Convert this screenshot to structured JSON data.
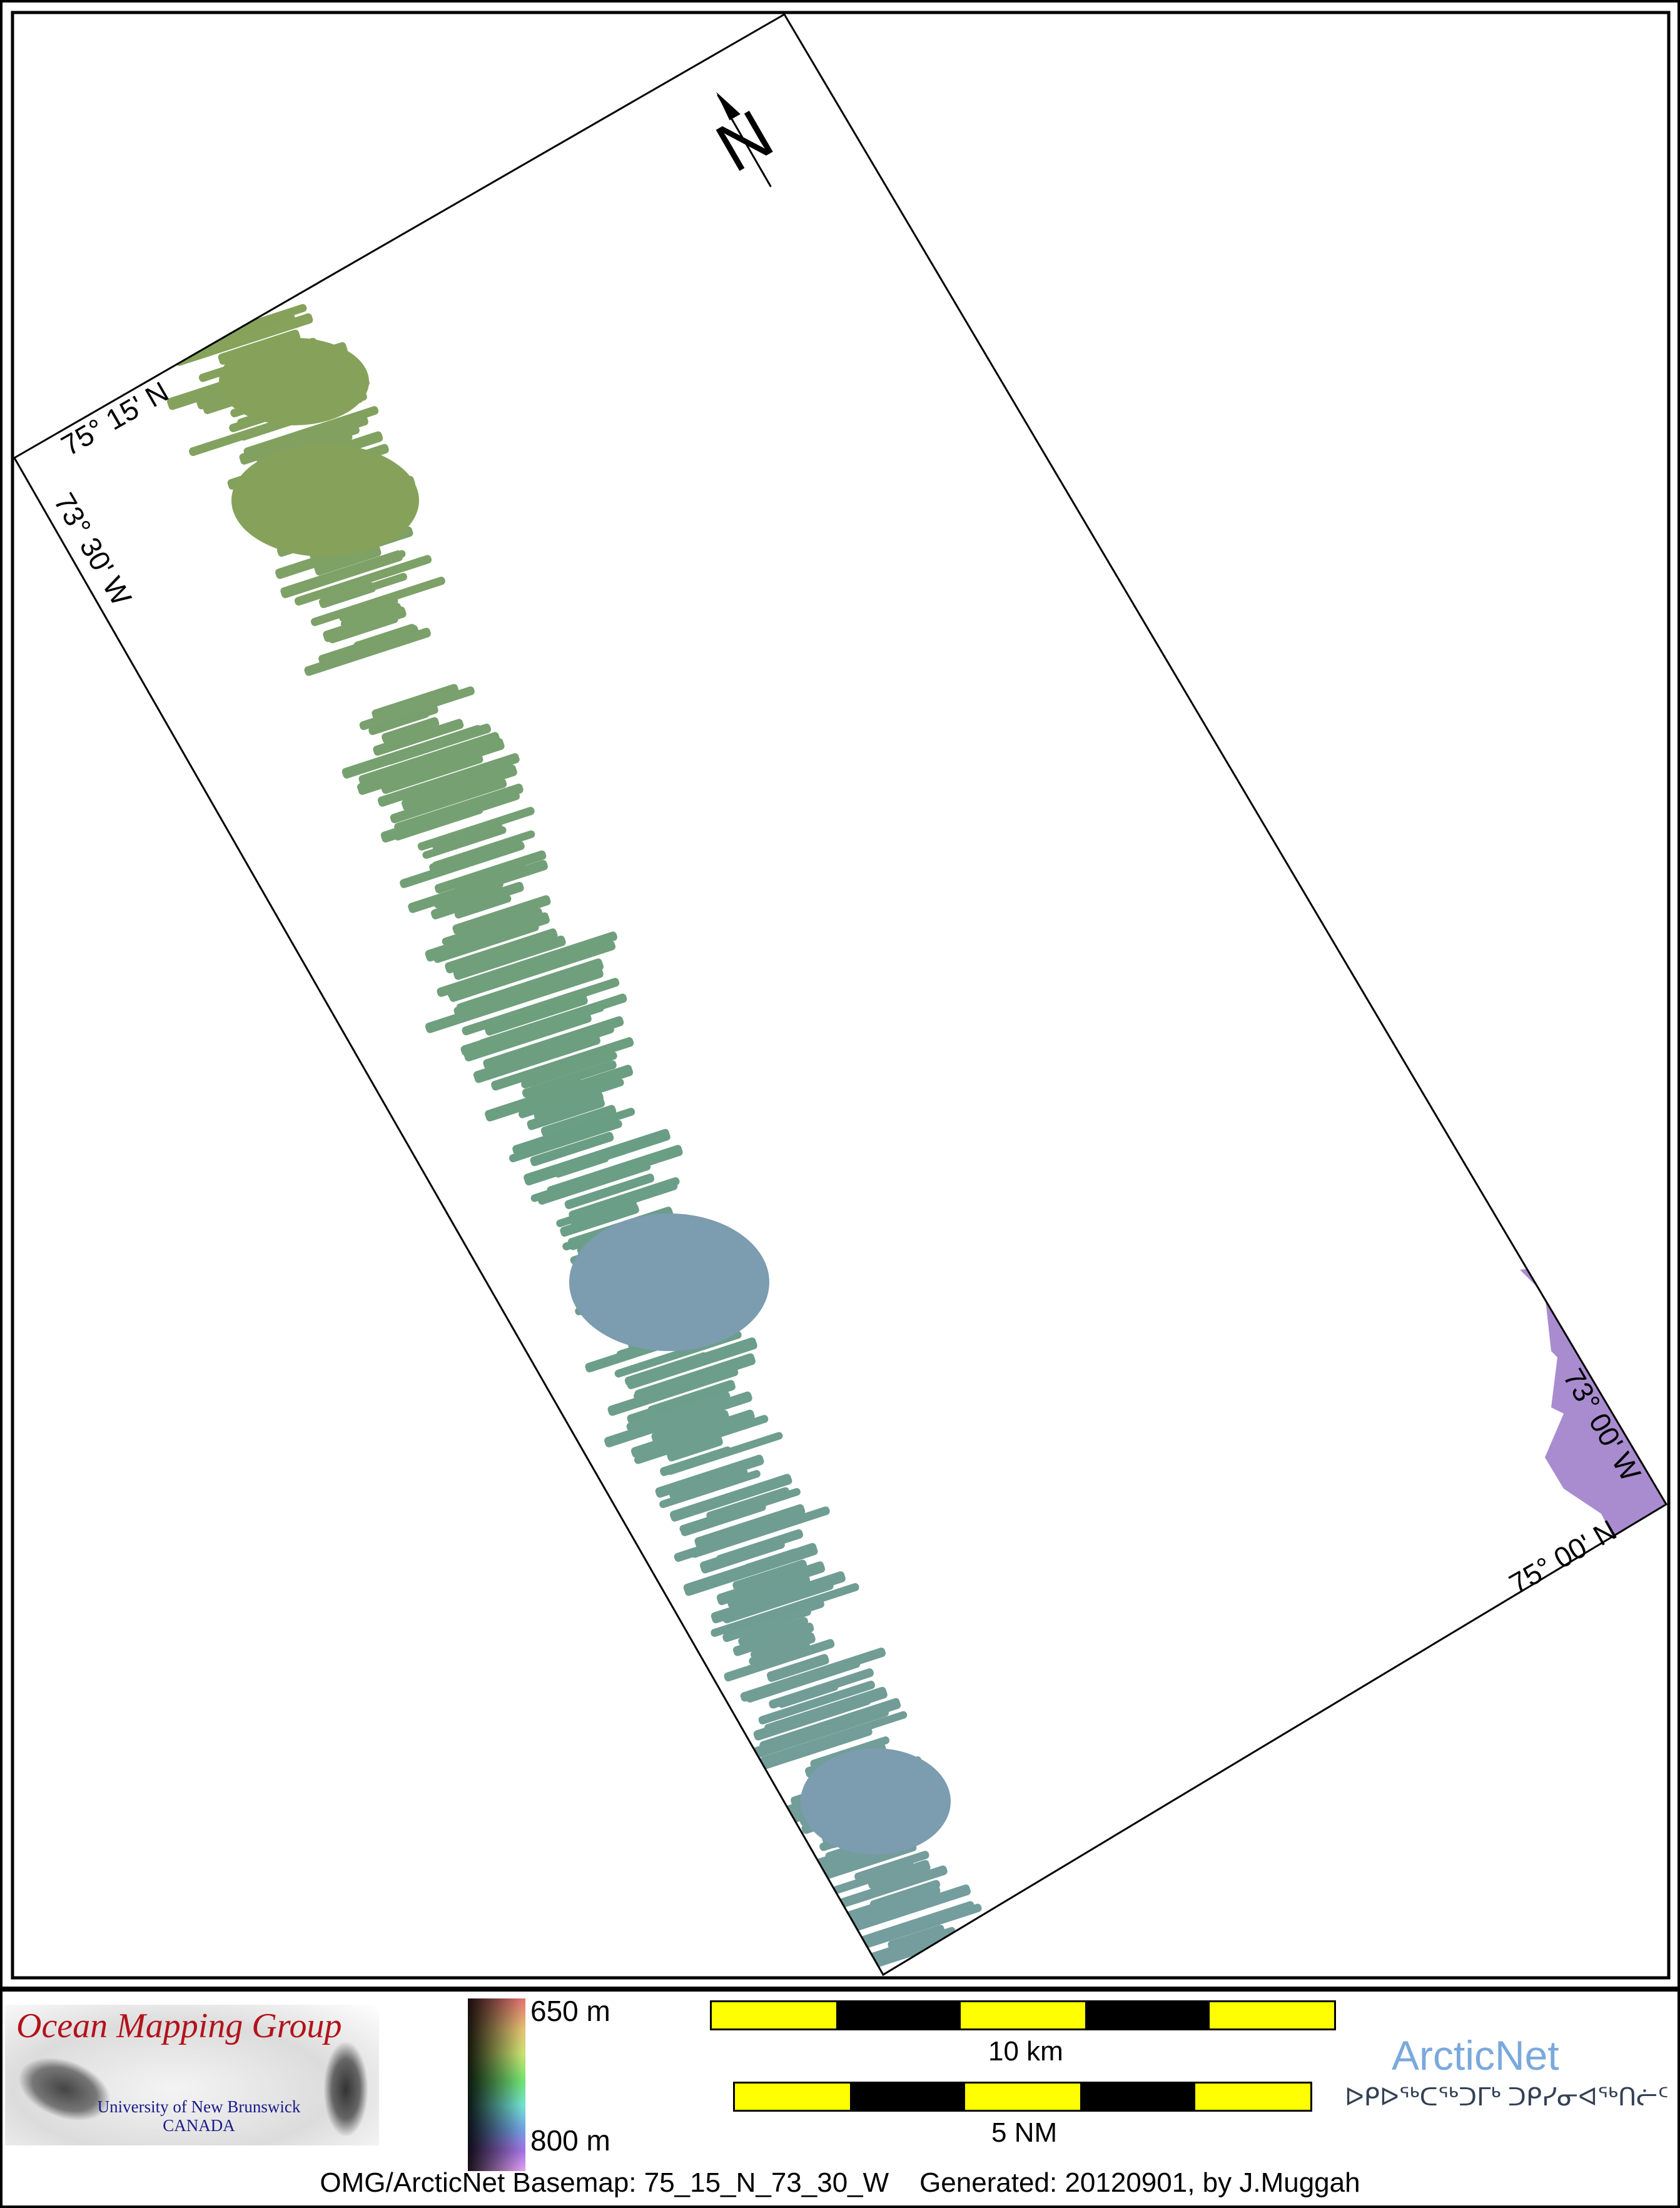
{
  "map": {
    "rotation_deg": -30,
    "north_arrow_label": "N",
    "labels": {
      "top_left_lat": "75° 15' N",
      "top_left_lon": "73° 30' W",
      "bottom_right_lon": "73° 00' W",
      "bottom_right_lat": "75° 00' N"
    },
    "colors": {
      "swath_shallow": "#86a25a",
      "swath_mid": "#6a9e84",
      "swath_deep": "#7c9cb0",
      "swath_purple": "#a486cc"
    }
  },
  "legend": {
    "logo": {
      "title": "Ocean Mapping Group",
      "university": "University of New Brunswick",
      "country": "CANADA"
    },
    "depth_scale": {
      "top_label": "650 m",
      "bottom_label": "800 m"
    },
    "scale_bars": [
      {
        "label": "10 km"
      },
      {
        "label": "5 NM"
      }
    ],
    "partner": {
      "name": "ArcticNet",
      "syllabics": "ᐅᑭᐅᖅᑕᖅᑐᒥᒃ ᑐᑭᓯᓂᐊᖅᑎᓖᑦ",
      "color": "#7aa9dc"
    },
    "footer": "OMG/ArcticNet Basemap: 75_15_N_73_30_W    Generated: 20120901, by J.Muggah"
  }
}
